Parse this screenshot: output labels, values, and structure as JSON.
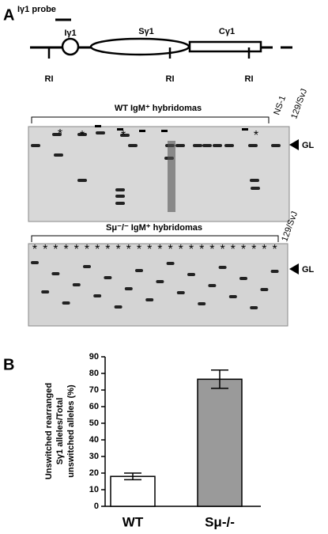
{
  "panel_a": {
    "label": "A",
    "probe": "Iγ1 probe",
    "i_region": "Iγ1",
    "s_region": "Sγ1",
    "c_region": "Cγ1",
    "ri": "RI",
    "gel_wt": {
      "title": "WT IgM⁺ hybridomas",
      "lane_ns1": "NS-1",
      "lane_129": "129/SvJ",
      "marker": "*",
      "gl": "GL"
    },
    "gel_smu": {
      "title": "Sμ⁻/⁻ IgM⁺ hybridomas",
      "lane_129": "129/SvJ",
      "marker": "*",
      "gl": "GL"
    }
  },
  "panel_b": {
    "label": "B"
  },
  "chart_data": {
    "type": "bar",
    "ylabel_lines": [
      "Unswitched rearranged",
      "Sγ1 alleles/Total",
      "unswitched alleles (%)"
    ],
    "categories": [
      "WT",
      "Sμ-/-"
    ],
    "values": [
      18,
      76.5
    ],
    "errors": [
      2,
      5.5
    ],
    "colors": [
      "#ffffff",
      "#9a9a9a"
    ],
    "ylim": [
      0,
      90
    ],
    "yticks": [
      0,
      10,
      20,
      30,
      40,
      50,
      60,
      70,
      80,
      90
    ]
  }
}
